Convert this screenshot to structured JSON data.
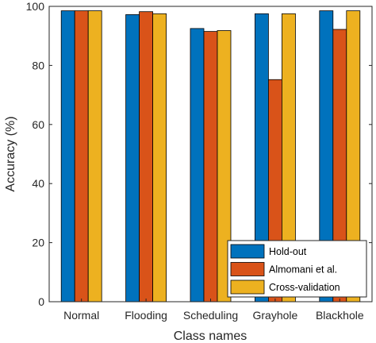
{
  "chart_data": {
    "type": "bar",
    "categories": [
      "Normal",
      "Flooding",
      "Scheduling",
      "Grayhole",
      "Blackhole"
    ],
    "series": [
      {
        "name": "Hold-out",
        "color": "#0072BD",
        "values": [
          98.5,
          97.2,
          92.5,
          97.5,
          98.5
        ]
      },
      {
        "name": "Almomani et al.",
        "color": "#D95319",
        "values": [
          98.5,
          98.2,
          91.5,
          75.2,
          92.2
        ]
      },
      {
        "name": "Cross-validation",
        "color": "#EDB120",
        "values": [
          98.5,
          97.5,
          91.8,
          97.5,
          98.5
        ]
      }
    ],
    "xlabel": "Class names",
    "ylabel": "Accuracy (%)",
    "ylim": [
      0,
      100
    ],
    "yticks": [
      "0",
      "20",
      "40",
      "60",
      "80",
      "100"
    ],
    "ytick_values": [
      0,
      20,
      40,
      60,
      80,
      100
    ],
    "grid": false,
    "legend_position": "bottom-right"
  }
}
